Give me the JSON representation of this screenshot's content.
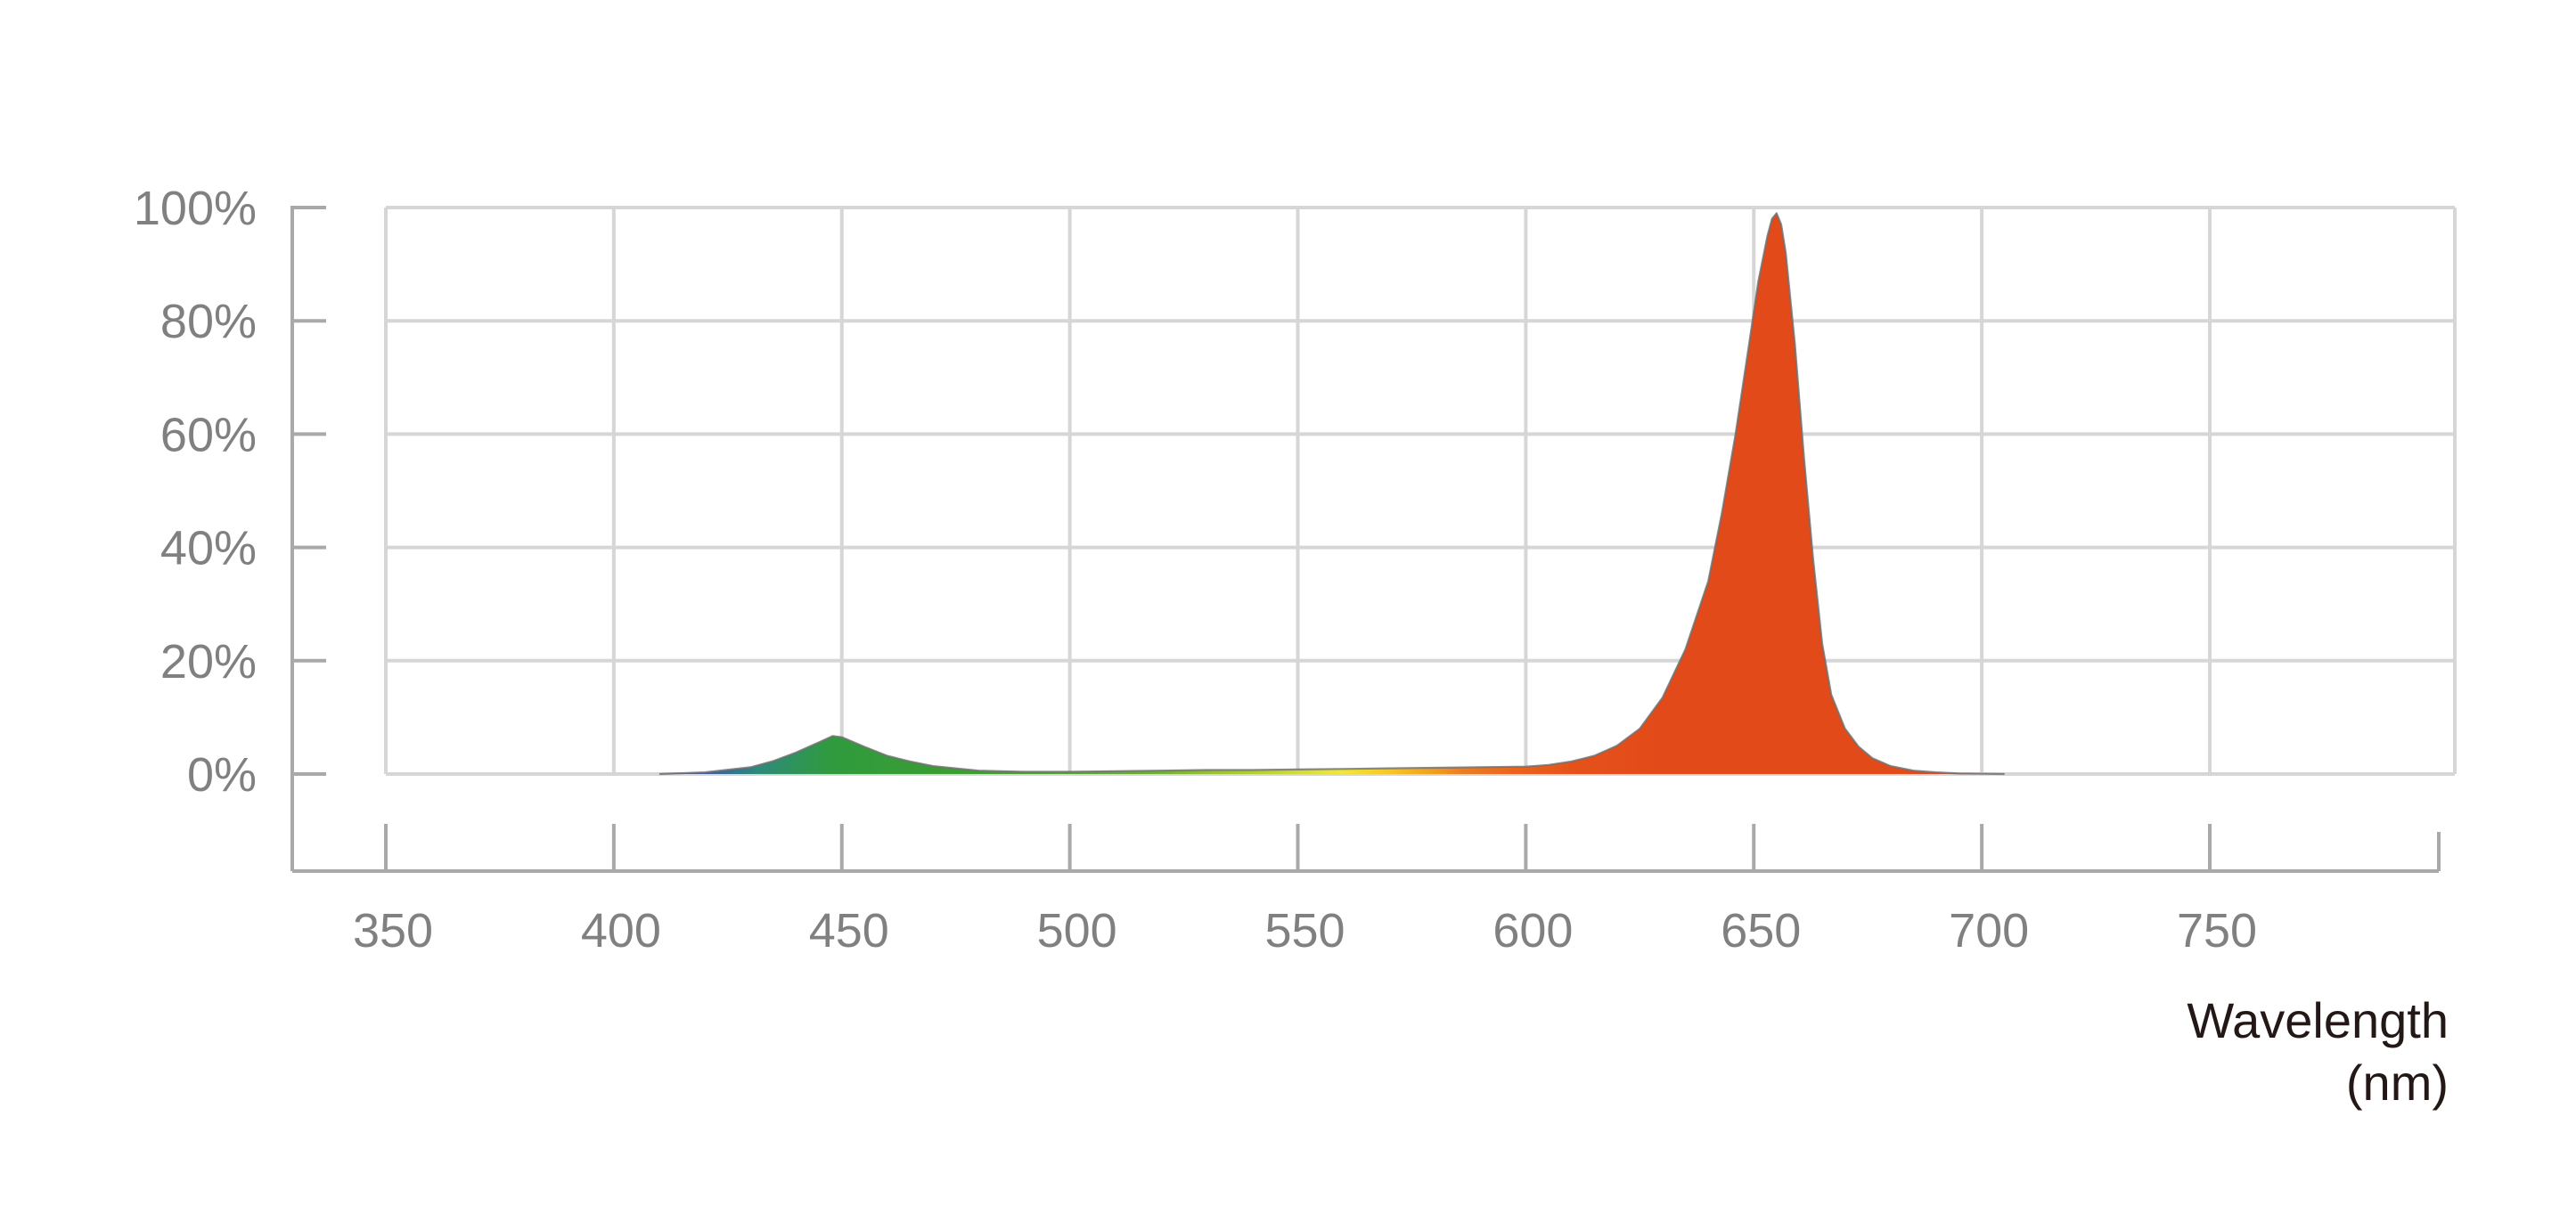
{
  "chart_data": {
    "type": "area",
    "title": "",
    "xlabel": "Wavelength",
    "xlabel_unit": "(nm)",
    "ylabel": "",
    "xlim": [
      350,
      800
    ],
    "ylim": [
      0,
      100
    ],
    "x_ticks": [
      350,
      400,
      450,
      500,
      550,
      600,
      650,
      700,
      750
    ],
    "x_tick_labels": [
      "350",
      "400",
      "450",
      "500",
      "550",
      "600",
      "650",
      "700",
      "750"
    ],
    "y_ticks": [
      0,
      20,
      40,
      60,
      80,
      100
    ],
    "y_tick_labels": [
      "0%",
      "20%",
      "40%",
      "60%",
      "80%",
      "100%"
    ],
    "grid": true,
    "legend": "none",
    "fill": "visible-spectrum gradient",
    "series": [
      {
        "x": [
          410,
          420,
          430,
          435,
          440,
          445,
          448,
          450,
          455,
          460,
          465,
          470,
          480,
          490,
          500,
          510,
          520,
          530,
          540,
          550,
          560,
          570,
          580,
          590,
          600,
          605,
          610,
          615,
          620,
          625,
          630,
          635,
          640,
          643,
          646,
          649,
          651,
          653,
          654,
          655,
          656,
          657,
          659,
          661,
          663,
          665,
          667,
          670,
          673,
          676,
          680,
          685,
          690,
          695,
          700,
          705
        ],
        "values": [
          0,
          0.3,
          1.2,
          2.3,
          3.8,
          5.6,
          6.7,
          6.5,
          4.8,
          3.2,
          2.2,
          1.4,
          0.6,
          0.4,
          0.4,
          0.5,
          0.6,
          0.7,
          0.7,
          0.8,
          0.9,
          1.0,
          1.1,
          1.2,
          1.3,
          1.6,
          2.2,
          3.2,
          5.0,
          8.0,
          13.5,
          22,
          34,
          46,
          60,
          76,
          87,
          95,
          98,
          99,
          97,
          92,
          76,
          56,
          38,
          23,
          14,
          8,
          4.8,
          2.8,
          1.4,
          0.6,
          0.3,
          0.1,
          0.05,
          0
        ]
      }
    ]
  }
}
